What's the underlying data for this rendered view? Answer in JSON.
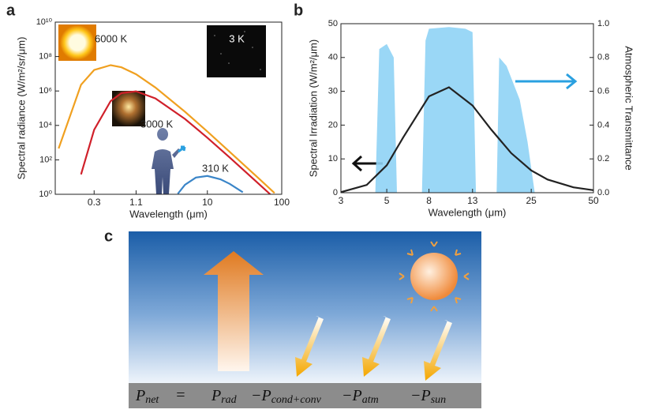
{
  "panel_labels": [
    "a",
    "b",
    "c"
  ],
  "chart_data": [
    {
      "type": "line",
      "xscale": "log",
      "yscale": "log",
      "xlabel": "Wavelength (μm)",
      "ylabel": "Spectral radiance (W/m²/sr/μm)",
      "xlim": [
        0.09,
        100
      ],
      "xticks": [
        0.3,
        1.1,
        10,
        100
      ],
      "ylim": [
        1,
        10000000000
      ],
      "yticks": [
        {
          "value": 1,
          "label": "10⁰"
        },
        {
          "value": 100,
          "label": "10²"
        },
        {
          "value": 10000,
          "label": "10⁴"
        },
        {
          "value": 1000000,
          "label": "10⁶"
        },
        {
          "value": 100000000,
          "label": "10⁸"
        },
        {
          "value": 10000000000,
          "label": "10¹⁰"
        }
      ],
      "series": [
        {
          "name": "6000 K",
          "color": "#f0a020",
          "x": [
            0.1,
            0.2,
            0.3,
            0.5,
            0.7,
            1.1,
            2,
            5,
            10,
            20,
            50,
            80
          ],
          "values": [
            458,
            2310000,
            16600000,
            31700000,
            23900000,
            9400000,
            1600000,
            61900,
            4395,
            292,
            7.8,
            1.19
          ]
        },
        {
          "name": "3000 K",
          "color": "#d0202a",
          "x": [
            0.2,
            0.3,
            0.5,
            0.7,
            1.1,
            2,
            5,
            10,
            20,
            50,
            70
          ],
          "values": [
            14.3,
            5570,
            260000,
            750000,
            960000,
            372000,
            23700,
            1933,
            137,
            3.8,
            1.0
          ]
        },
        {
          "name": "310 K",
          "color": "#3a85c8",
          "x": [
            4,
            5,
            7,
            10,
            15,
            20,
            30
          ],
          "values": [
            1.07,
            3.56,
            9.37,
            11.6,
            7.44,
            4.04,
            1.32
          ]
        }
      ],
      "annotations": [
        "3 K"
      ]
    },
    {
      "type": "line",
      "xscale": "log",
      "xlabel": "Wavelength (μm)",
      "ylabel": "Spectral Irradiation (W/m²/μm)",
      "y2label": "Atmospheric Transmittance",
      "xlim": [
        3,
        50
      ],
      "xticks": [
        3,
        5,
        8,
        13,
        25,
        50
      ],
      "ylim": [
        0,
        50
      ],
      "yticks": [
        0,
        10,
        20,
        30,
        40,
        50
      ],
      "y2lim": [
        0,
        1
      ],
      "y2ticks": [
        {
          "value": 0,
          "label": "0.0"
        },
        0.2,
        0.4,
        0.6,
        0.8,
        {
          "value": 1,
          "label": "1.0"
        }
      ],
      "series": [
        {
          "color": "#8fd3f5",
          "axis": "y2",
          "style": "area",
          "x": [
            3,
            4.4,
            4.6,
            5,
            5.4,
            5.6,
            7.4,
            7.7,
            8,
            10,
            12,
            13,
            13.5,
            17,
            17.5,
            19,
            22,
            24,
            26,
            50
          ],
          "values": [
            0,
            0,
            0.85,
            0.88,
            0.8,
            0,
            0,
            0.9,
            0.97,
            0.98,
            0.97,
            0.95,
            0,
            0,
            0.8,
            0.75,
            0.55,
            0.3,
            0,
            0
          ]
        },
        {
          "color": "#222222",
          "x": [
            3,
            4,
            5,
            6,
            8,
            10,
            13,
            16,
            20,
            25,
            30,
            40,
            50
          ],
          "values": [
            0.17,
            2.28,
            8.1,
            16.3,
            28.5,
            31.2,
            25.8,
            18.7,
            11.7,
            6.6,
            3.9,
            1.58,
            0.74
          ]
        }
      ]
    }
  ],
  "panel_c": {
    "equation": [
      {
        "symbol": "P",
        "sub": "net"
      },
      {
        "op": "="
      },
      {
        "symbol": "P",
        "sub": "rad"
      },
      {
        "sign": "−",
        "symbol": "P",
        "sub": "cond+conv"
      },
      {
        "sign": "−",
        "symbol": "P",
        "sub": "atm"
      },
      {
        "sign": "−",
        "symbol": "P",
        "sub": "sun"
      }
    ]
  }
}
